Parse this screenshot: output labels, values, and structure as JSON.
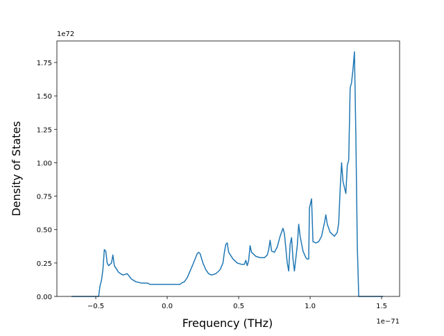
{
  "chart_data": {
    "type": "line",
    "x_label": "Frequency (THz)",
    "y_label": "Density of States",
    "x_offset_label": "1e−71",
    "y_offset_label": "1e72",
    "xlim": [
      -0.772,
      1.626
    ],
    "ylim": [
      0,
      1.911
    ],
    "xticks": [
      {
        "value": -0.5,
        "label": "−0.5"
      },
      {
        "value": 0,
        "label": "0.0"
      },
      0.5,
      {
        "value": 1,
        "label": "1.0"
      },
      1.5
    ],
    "yticks": [
      {
        "value": 0,
        "label": "0.00"
      },
      0.25,
      {
        "value": 0.5,
        "label": "0.50"
      },
      0.75,
      {
        "value": 1,
        "label": "1.00"
      },
      1.25,
      {
        "value": 1.5,
        "label": "1.50"
      },
      1.75
    ],
    "series": [
      {
        "color": "#1f77b4",
        "x": [
          -0.67,
          -0.48,
          -0.47,
          -0.46,
          -0.45,
          -0.44,
          -0.43,
          -0.42,
          -0.41,
          -0.39,
          -0.38,
          -0.37,
          -0.34,
          -0.31,
          -0.28,
          -0.25,
          -0.22,
          -0.18,
          -0.14,
          -0.12,
          -0.05,
          0.0,
          0.05,
          0.09,
          0.1,
          0.12,
          0.14,
          0.18,
          0.21,
          0.22,
          0.23,
          0.25,
          0.27,
          0.29,
          0.31,
          0.34,
          0.37,
          0.39,
          0.4,
          0.41,
          0.42,
          0.43,
          0.46,
          0.49,
          0.52,
          0.54,
          0.55,
          0.56,
          0.57,
          0.58,
          0.59,
          0.62,
          0.65,
          0.68,
          0.7,
          0.71,
          0.72,
          0.73,
          0.75,
          0.77,
          0.79,
          0.81,
          0.82,
          0.83,
          0.84,
          0.85,
          0.86,
          0.87,
          0.88,
          0.89,
          0.91,
          0.92,
          0.93,
          0.95,
          0.97,
          0.98,
          0.99,
          0.995,
          1.01,
          1.02,
          1.04,
          1.06,
          1.08,
          1.1,
          1.11,
          1.12,
          1.14,
          1.17,
          1.19,
          1.2,
          1.21,
          1.22,
          1.23,
          1.25,
          1.26,
          1.27,
          1.28,
          1.29,
          1.3,
          1.31,
          1.32,
          1.33,
          1.34,
          1.45,
          1.51
        ],
        "values": [
          0,
          0,
          0.08,
          0.12,
          0.2,
          0.35,
          0.34,
          0.25,
          0.23,
          0.25,
          0.31,
          0.23,
          0.18,
          0.16,
          0.17,
          0.13,
          0.11,
          0.1,
          0.1,
          0.09,
          0.09,
          0.09,
          0.09,
          0.09,
          0.1,
          0.11,
          0.14,
          0.24,
          0.32,
          0.33,
          0.32,
          0.25,
          0.2,
          0.17,
          0.16,
          0.17,
          0.2,
          0.25,
          0.33,
          0.39,
          0.4,
          0.33,
          0.28,
          0.25,
          0.24,
          0.24,
          0.27,
          0.23,
          0.27,
          0.38,
          0.33,
          0.3,
          0.29,
          0.29,
          0.31,
          0.35,
          0.42,
          0.34,
          0.33,
          0.37,
          0.45,
          0.51,
          0.47,
          0.36,
          0.25,
          0.19,
          0.39,
          0.44,
          0.28,
          0.19,
          0.38,
          0.54,
          0.45,
          0.34,
          0.29,
          0.28,
          0.28,
          0.66,
          0.73,
          0.41,
          0.4,
          0.41,
          0.45,
          0.55,
          0.61,
          0.54,
          0.48,
          0.45,
          0.48,
          0.55,
          0.8,
          1.0,
          0.86,
          0.77,
          0.98,
          1.02,
          1.56,
          1.6,
          1.7,
          1.83,
          1.2,
          0.38,
          0,
          0,
          0
        ]
      }
    ]
  }
}
